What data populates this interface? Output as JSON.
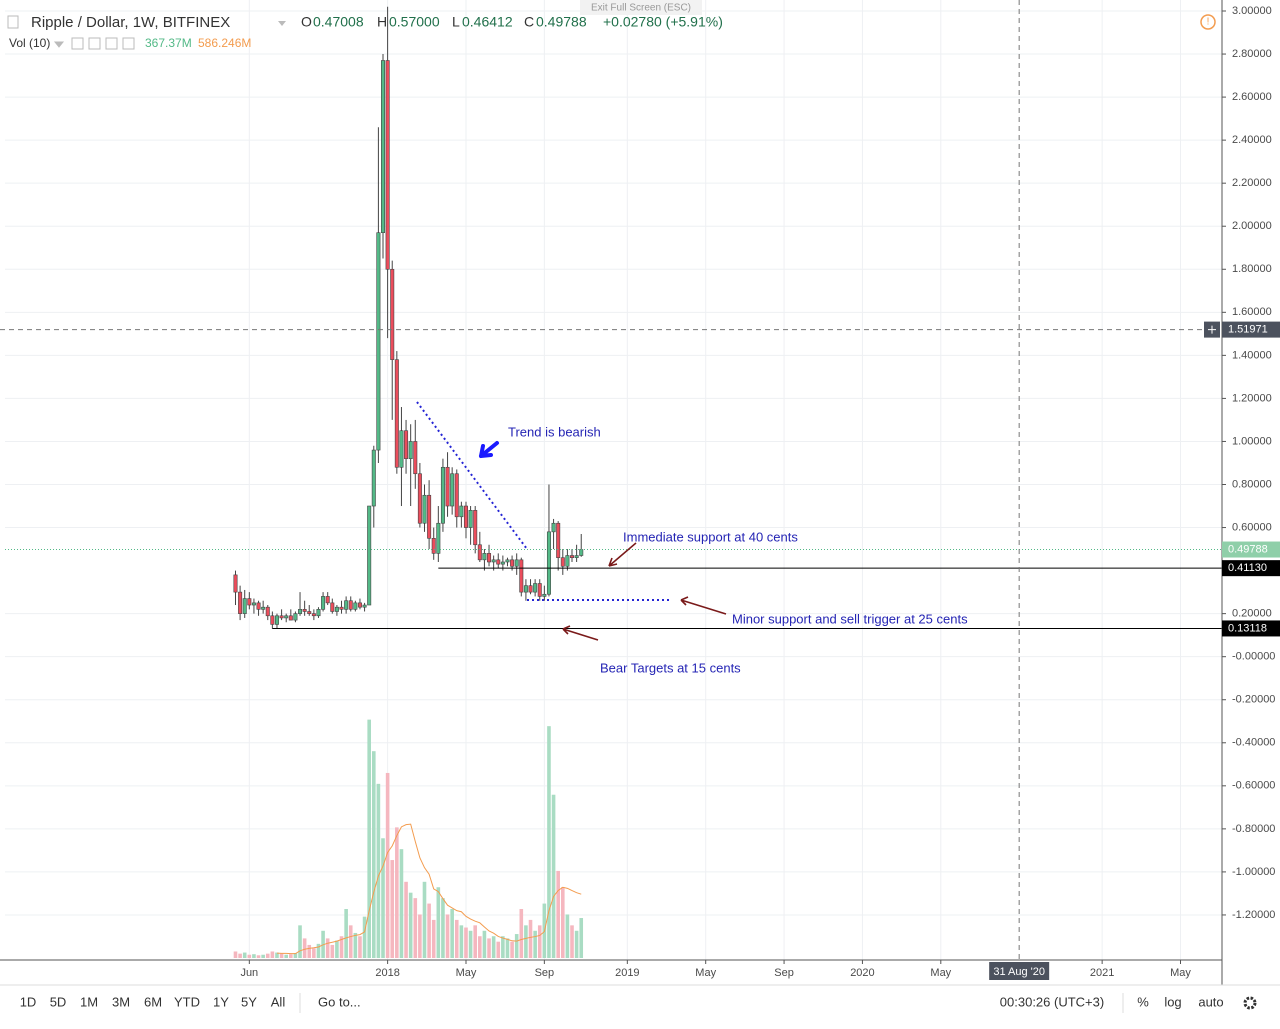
{
  "chart_data": {
    "type": "candlestick",
    "title": "Ripple / Dollar, 1W, BITFINEX",
    "exit_hint": "Exit Full Screen (ESC)",
    "ohlc_legend": [
      {
        "key": "O",
        "value": "0.47008"
      },
      {
        "key": "H",
        "value": "0.57000"
      },
      {
        "key": "L",
        "value": "0.46412"
      },
      {
        "key": "C",
        "value": "0.49788"
      }
    ],
    "change": "+0.02780 (+5.91%)",
    "volume_legend": {
      "name": "Vol (10)",
      "volume": "367.37M",
      "ma": "586.246M"
    },
    "up_color": "#53b987",
    "down_color": "#eb4d5c",
    "volume_up_color": "#a9dcc3",
    "volume_down_color": "#f5b7bf",
    "vol_ma_color": "#f39c4f",
    "open": [
      0.38,
      0.3,
      0.2,
      0.27,
      0.24,
      0.25,
      0.22,
      0.23,
      0.19,
      0.15,
      0.19,
      0.18,
      0.19,
      0.17,
      0.2,
      0.22,
      0.21,
      0.2,
      0.19,
      0.22,
      0.28,
      0.25,
      0.21,
      0.23,
      0.22,
      0.26,
      0.22,
      0.25,
      0.23,
      0.24,
      0.7,
      0.96,
      1.97,
      2.77,
      1.8,
      1.38,
      0.88,
      1.05,
      0.92,
      1.0,
      0.85,
      0.62,
      0.75,
      0.55,
      0.48,
      0.62,
      0.88,
      0.7,
      0.85,
      0.65,
      0.7,
      0.6,
      0.68,
      0.52,
      0.45,
      0.48,
      0.44,
      0.45,
      0.43,
      0.44,
      0.45,
      0.42,
      0.45,
      0.3,
      0.33,
      0.3,
      0.34,
      0.28,
      0.29,
      0.58,
      0.62,
      0.46,
      0.42,
      0.47,
      0.46,
      0.47008
    ],
    "high": [
      0.4,
      0.33,
      0.31,
      0.3,
      0.27,
      0.26,
      0.26,
      0.24,
      0.21,
      0.2,
      0.22,
      0.2,
      0.22,
      0.21,
      0.3,
      0.26,
      0.24,
      0.22,
      0.23,
      0.3,
      0.3,
      0.27,
      0.24,
      0.26,
      0.28,
      0.28,
      0.26,
      0.27,
      0.25,
      0.7,
      0.98,
      2.46,
      2.8,
      3.02,
      1.84,
      1.42,
      1.16,
      1.1,
      1.08,
      1.1,
      0.9,
      0.8,
      0.82,
      0.6,
      0.7,
      0.92,
      0.95,
      0.88,
      0.87,
      0.72,
      0.72,
      0.7,
      0.7,
      0.58,
      0.5,
      0.52,
      0.47,
      0.48,
      0.47,
      0.46,
      0.47,
      0.48,
      0.46,
      0.36,
      0.36,
      0.36,
      0.36,
      0.33,
      0.8,
      0.64,
      0.63,
      0.5,
      0.5,
      0.5,
      0.52,
      0.57
    ],
    "low": [
      0.24,
      0.17,
      0.18,
      0.22,
      0.2,
      0.19,
      0.2,
      0.17,
      0.13,
      0.13,
      0.17,
      0.16,
      0.17,
      0.16,
      0.19,
      0.19,
      0.19,
      0.17,
      0.18,
      0.21,
      0.24,
      0.2,
      0.19,
      0.2,
      0.2,
      0.21,
      0.21,
      0.22,
      0.21,
      0.24,
      0.6,
      0.9,
      1.85,
      1.48,
      1.1,
      0.85,
      0.7,
      0.85,
      0.7,
      0.78,
      0.6,
      0.58,
      0.5,
      0.45,
      0.44,
      0.58,
      0.65,
      0.66,
      0.6,
      0.6,
      0.55,
      0.52,
      0.48,
      0.44,
      0.4,
      0.42,
      0.4,
      0.41,
      0.4,
      0.42,
      0.4,
      0.38,
      0.28,
      0.26,
      0.29,
      0.28,
      0.26,
      0.26,
      0.28,
      0.5,
      0.4,
      0.38,
      0.4,
      0.44,
      0.44,
      0.46412
    ],
    "close": [
      0.3,
      0.2,
      0.27,
      0.24,
      0.25,
      0.22,
      0.23,
      0.19,
      0.15,
      0.19,
      0.18,
      0.19,
      0.17,
      0.2,
      0.22,
      0.21,
      0.2,
      0.19,
      0.22,
      0.28,
      0.25,
      0.21,
      0.23,
      0.22,
      0.26,
      0.22,
      0.25,
      0.23,
      0.24,
      0.7,
      0.96,
      1.97,
      2.77,
      1.8,
      1.38,
      0.88,
      1.05,
      0.92,
      1.0,
      0.85,
      0.62,
      0.75,
      0.55,
      0.48,
      0.62,
      0.88,
      0.7,
      0.85,
      0.65,
      0.7,
      0.6,
      0.68,
      0.52,
      0.45,
      0.48,
      0.44,
      0.45,
      0.43,
      0.44,
      0.45,
      0.42,
      0.45,
      0.3,
      0.33,
      0.3,
      0.34,
      0.28,
      0.29,
      0.58,
      0.62,
      0.46,
      0.42,
      0.47,
      0.46,
      0.47,
      0.49788
    ],
    "volume": [
      60,
      40,
      50,
      30,
      35,
      25,
      30,
      40,
      60,
      50,
      40,
      30,
      35,
      45,
      300,
      180,
      120,
      90,
      130,
      250,
      180,
      120,
      160,
      200,
      450,
      300,
      230,
      200,
      380,
      2190,
      1900,
      1600,
      1100,
      1700,
      900,
      1200,
      1000,
      700,
      600,
      550,
      400,
      700,
      500,
      350,
      650,
      550,
      400,
      450,
      350,
      300,
      280,
      250,
      300,
      200,
      250,
      180,
      200,
      150,
      200,
      180,
      150,
      220,
      450,
      300,
      350,
      250,
      300,
      500,
      2130,
      1500,
      800,
      650,
      400,
      300,
      250,
      367.37
    ],
    "vol_ma": [
      null,
      null,
      null,
      null,
      null,
      null,
      null,
      null,
      null,
      45,
      43,
      42,
      40,
      40,
      66,
      80,
      88,
      94,
      101,
      121,
      136,
      145,
      155,
      170,
      185,
      197,
      208,
      215,
      240,
      434,
      606,
      754,
      845,
      970,
      1030,
      1125,
      1205,
      1225,
      1230,
      1070,
      920,
      830,
      770,
      635,
      610,
      545,
      485,
      460,
      435,
      425,
      383,
      358,
      338,
      323,
      285,
      248,
      228,
      198,
      183,
      171,
      158,
      155,
      170,
      180,
      190,
      197,
      207,
      242,
      435,
      565,
      620,
      650,
      640,
      620,
      600,
      586.246
    ],
    "vol_ylim": [
      0,
      2600
    ],
    "xlim": [
      -50,
      214
    ],
    "xticks": [
      {
        "value": 3,
        "label": "Jun"
      },
      {
        "value": 33,
        "label": "2018"
      },
      {
        "value": 50,
        "label": "May"
      },
      {
        "value": 67,
        "label": "Sep"
      },
      {
        "value": 85,
        "label": "2019"
      },
      {
        "value": 102,
        "label": "May"
      },
      {
        "value": 119,
        "label": "Sep"
      },
      {
        "value": 136,
        "label": "2020"
      },
      {
        "value": 153,
        "label": "May"
      },
      {
        "value": 188,
        "label": "2021"
      },
      {
        "value": 205,
        "label": "May"
      }
    ],
    "ylim": [
      -1.4,
      3.0
    ],
    "yticks": [
      {
        "value": 3.0,
        "label": "3.00000"
      },
      {
        "value": 2.8,
        "label": "2.80000"
      },
      {
        "value": 2.6,
        "label": "2.60000"
      },
      {
        "value": 2.4,
        "label": "2.40000"
      },
      {
        "value": 2.2,
        "label": "2.20000"
      },
      {
        "value": 2.0,
        "label": "2.00000"
      },
      {
        "value": 1.8,
        "label": "1.80000"
      },
      {
        "value": 1.6,
        "label": "1.60000"
      },
      {
        "value": 1.4,
        "label": "1.40000"
      },
      {
        "value": 1.2,
        "label": "1.20000"
      },
      {
        "value": 1.0,
        "label": "1.00000"
      },
      {
        "value": 0.8,
        "label": "0.80000"
      },
      {
        "value": 0.6,
        "label": "0.60000"
      },
      {
        "value": 0.2,
        "label": "0.20000"
      },
      {
        "value": 0,
        "label": "-0.00000"
      },
      {
        "value": -0.2,
        "label": "-0.20000"
      },
      {
        "value": -0.4,
        "label": "-0.40000"
      },
      {
        "value": -0.6,
        "label": "-0.60000"
      },
      {
        "value": -0.8,
        "label": "-0.80000"
      },
      {
        "value": -1.0,
        "label": "-1.00000"
      },
      {
        "value": -1.2,
        "label": "-1.20000"
      }
    ],
    "grid": true,
    "last_price": 0.49788,
    "price_lines": [
      {
        "price": {
          "value": 0.4113,
          "label": "0.41130"
        },
        "from": 44
      },
      {
        "price": 0.13118,
        "from": 8
      }
    ],
    "crosshair": {
      "x": {
        "value": 170,
        "label": "31 Aug '20"
      },
      "y": 1.51971
    },
    "annotations": [
      "Trend is bearish",
      "Immediate support at 40 cents",
      "Minor support and sell trigger at 25 cents",
      "Bear Targets at 15 cents"
    ]
  },
  "toolbar": {
    "ranges": [
      "1D",
      "5D",
      "1M",
      "3M",
      "6M",
      "YTD",
      "1Y",
      "5Y",
      "All"
    ],
    "goto": "Go to...",
    "clock": "00:30:26 (UTC+3)",
    "buttons": [
      "%",
      "log",
      "auto"
    ]
  }
}
